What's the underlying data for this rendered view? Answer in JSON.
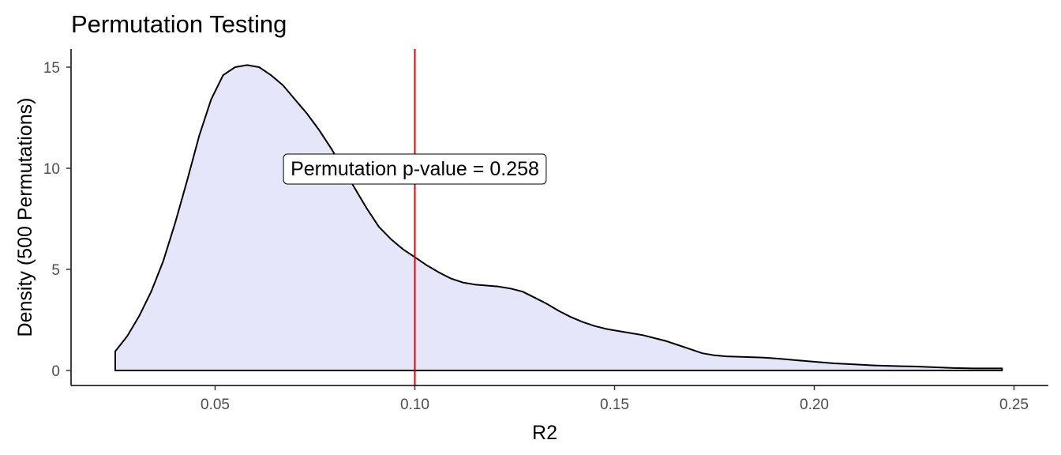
{
  "chart_data": {
    "type": "area",
    "title": "Permutation Testing",
    "xlabel": "R2",
    "ylabel": "Density (500 Permutations)",
    "xlim": [
      0.025,
      0.247
    ],
    "ylim": [
      0,
      15.1
    ],
    "x_ticks": [
      0.05,
      0.1,
      0.15,
      0.2,
      0.25
    ],
    "x_tick_labels": [
      "0.05",
      "0.10",
      "0.15",
      "0.20",
      "0.25"
    ],
    "y_ticks": [
      0,
      5,
      10,
      15
    ],
    "y_tick_labels": [
      "0",
      "5",
      "10",
      "15"
    ],
    "series": [
      {
        "x": [
          0.025,
          0.028,
          0.031,
          0.034,
          0.037,
          0.04,
          0.043,
          0.046,
          0.049,
          0.052,
          0.055,
          0.058,
          0.061,
          0.064,
          0.067,
          0.07,
          0.073,
          0.076,
          0.079,
          0.082,
          0.085,
          0.088,
          0.091,
          0.094,
          0.097,
          0.1,
          0.103,
          0.106,
          0.109,
          0.112,
          0.115,
          0.118,
          0.121,
          0.124,
          0.127,
          0.13,
          0.133,
          0.136,
          0.139,
          0.142,
          0.145,
          0.148,
          0.151,
          0.154,
          0.157,
          0.16,
          0.163,
          0.166,
          0.169,
          0.172,
          0.175,
          0.178,
          0.181,
          0.184,
          0.187,
          0.19,
          0.193,
          0.196,
          0.199,
          0.202,
          0.205,
          0.21,
          0.215,
          0.22,
          0.225,
          0.23,
          0.235,
          0.24,
          0.247
        ],
        "y": [
          0.95,
          1.7,
          2.7,
          3.9,
          5.4,
          7.3,
          9.4,
          11.6,
          13.4,
          14.6,
          15.0,
          15.1,
          15.0,
          14.6,
          14.1,
          13.4,
          12.7,
          11.9,
          11.0,
          10.0,
          9.0,
          8.0,
          7.1,
          6.5,
          6.0,
          5.6,
          5.2,
          4.85,
          4.55,
          4.35,
          4.25,
          4.2,
          4.15,
          4.05,
          3.9,
          3.6,
          3.3,
          2.95,
          2.65,
          2.4,
          2.2,
          2.05,
          1.95,
          1.85,
          1.75,
          1.6,
          1.45,
          1.25,
          1.05,
          0.85,
          0.75,
          0.7,
          0.68,
          0.66,
          0.64,
          0.6,
          0.55,
          0.5,
          0.45,
          0.4,
          0.35,
          0.3,
          0.25,
          0.22,
          0.2,
          0.16,
          0.12,
          0.1,
          0.1
        ],
        "fill": "#e6e6fa",
        "stroke": "#000000"
      }
    ],
    "vline": {
      "x": 0.1,
      "color": "#e00000"
    },
    "annotation": {
      "text": "Permutation p-value = 0.258",
      "x": 0.1,
      "y": 10
    },
    "grid": false
  }
}
